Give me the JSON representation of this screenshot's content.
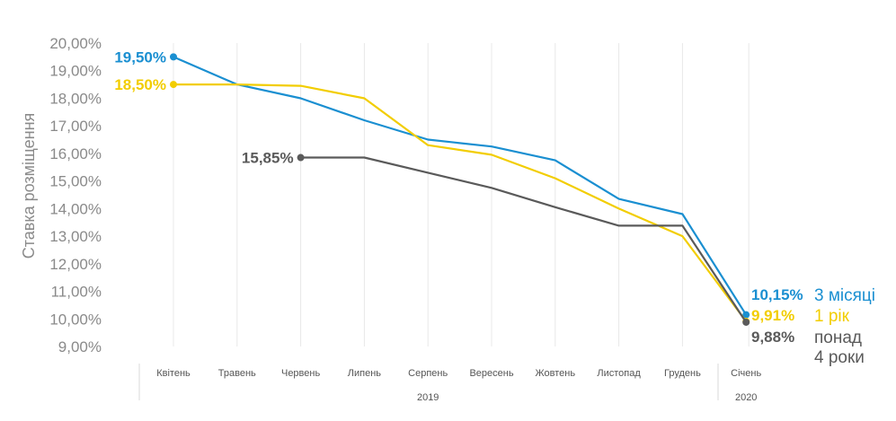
{
  "chart_data": {
    "type": "line",
    "ylabel": "Ставка розміщення",
    "ylim": [
      9,
      20
    ],
    "yticks": [
      "9,00%",
      "10,00%",
      "11,00%",
      "12,00%",
      "13,00%",
      "14,00%",
      "15,00%",
      "16,00%",
      "17,00%",
      "18,00%",
      "19,00%",
      "20,00%"
    ],
    "categories": [
      "Квітень",
      "Травень",
      "Червень",
      "Липень",
      "Серпень",
      "Вересень",
      "Жовтень",
      "Листопад",
      "Грудень",
      "Січень"
    ],
    "year_groups": [
      {
        "label": "2019",
        "from": 0,
        "to": 8
      },
      {
        "label": "2020",
        "from": 9,
        "to": 9
      }
    ],
    "grid": "vertical",
    "series": [
      {
        "name": "3 місяці",
        "color": "#1a8fd1",
        "values": [
          19.5,
          18.5,
          18.0,
          17.2,
          16.5,
          16.25,
          15.75,
          14.35,
          13.8,
          10.15
        ],
        "start_label": "19,50%",
        "end_label": "10,15%"
      },
      {
        "name": "1 рік",
        "color": "#f2cd00",
        "values": [
          18.5,
          18.5,
          18.45,
          18.0,
          16.3,
          15.95,
          15.1,
          14.0,
          13.0,
          9.91
        ],
        "start_label": "18,50%",
        "end_label": "9,91%"
      },
      {
        "name": "понад 4 роки",
        "color": "#5a5a5a",
        "values": [
          null,
          null,
          15.85,
          15.85,
          15.3,
          14.75,
          14.05,
          13.38,
          13.38,
          9.88
        ],
        "start_label": "15,85%",
        "end_label": "9,88%"
      }
    ]
  }
}
